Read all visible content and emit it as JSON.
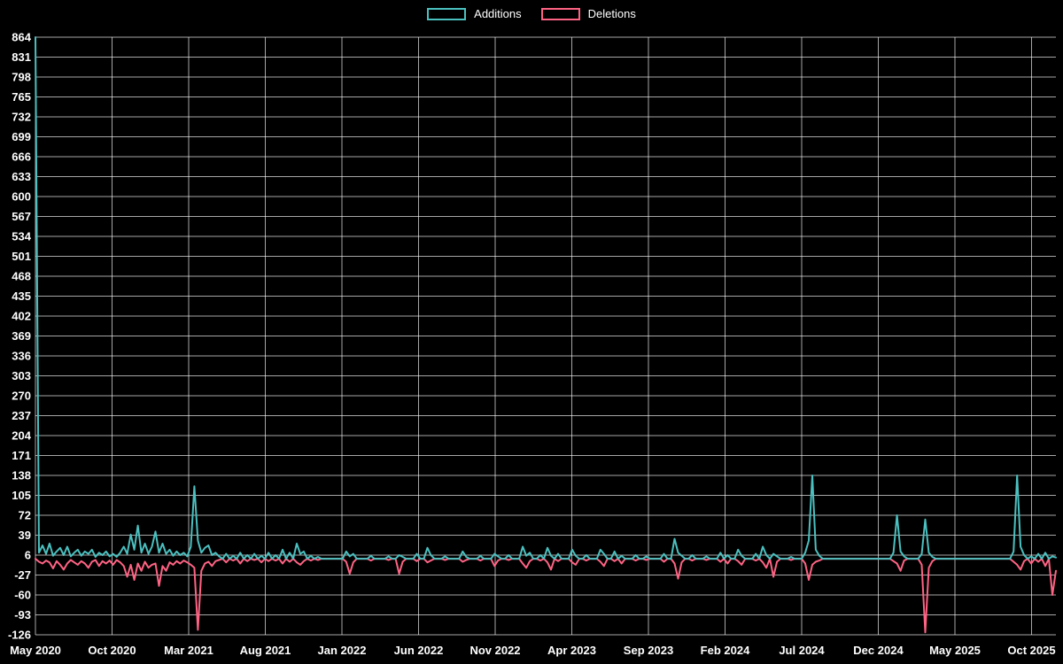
{
  "chart_data": {
    "type": "line",
    "title": "",
    "background": "#000000",
    "grid": true,
    "legend_position": "top",
    "x_axis": {
      "unit": "week",
      "weeks_total": 290,
      "weeks_per_tick": 21.7,
      "tick_labels": [
        "May 2020",
        "Oct 2020",
        "Mar 2021",
        "Aug 2021",
        "Jan 2022",
        "Jun 2022",
        "Nov 2022",
        "Apr 2023",
        "Sep 2023",
        "Feb 2024",
        "Jul 2024",
        "Dec 2024",
        "May 2025",
        "Oct 2025"
      ]
    },
    "y_axis": {
      "min": -126,
      "max": 864,
      "tick_step": 33,
      "tick_labels": [
        864,
        831,
        798,
        765,
        732,
        699,
        666,
        633,
        600,
        567,
        534,
        501,
        468,
        435,
        402,
        369,
        336,
        303,
        270,
        237,
        204,
        171,
        138,
        105,
        72,
        39,
        6,
        -27,
        -60,
        -93,
        -126
      ]
    },
    "series": [
      {
        "name": "Additions",
        "color": "#4bc0c0",
        "default": 0
      },
      {
        "name": "Deletions",
        "color": "#ff6384",
        "default": 0
      }
    ],
    "points_format": "[week_index, additions, deletions]; weeks not listed are [0, 0]",
    "points": [
      [
        0,
        864,
        0
      ],
      [
        1,
        10,
        -5
      ],
      [
        2,
        22,
        -8
      ],
      [
        3,
        8,
        -3
      ],
      [
        4,
        25,
        -6
      ],
      [
        5,
        5,
        -16
      ],
      [
        6,
        12,
        -4
      ],
      [
        7,
        18,
        -10
      ],
      [
        8,
        6,
        -18
      ],
      [
        9,
        20,
        -8
      ],
      [
        10,
        4,
        -2
      ],
      [
        11,
        10,
        -6
      ],
      [
        12,
        15,
        -10
      ],
      [
        13,
        5,
        -4
      ],
      [
        14,
        12,
        -8
      ],
      [
        15,
        8,
        -15
      ],
      [
        16,
        15,
        -5
      ],
      [
        17,
        3,
        -2
      ],
      [
        18,
        10,
        -12
      ],
      [
        19,
        6,
        -4
      ],
      [
        20,
        12,
        -8
      ],
      [
        21,
        4,
        -3
      ],
      [
        22,
        8,
        -10
      ],
      [
        23,
        3,
        -2
      ],
      [
        24,
        10,
        -6
      ],
      [
        25,
        20,
        -12
      ],
      [
        26,
        8,
        -30
      ],
      [
        27,
        40,
        -10
      ],
      [
        28,
        15,
        -35
      ],
      [
        29,
        55,
        -8
      ],
      [
        30,
        10,
        -20
      ],
      [
        31,
        25,
        -5
      ],
      [
        32,
        8,
        -15
      ],
      [
        33,
        20,
        -10
      ],
      [
        34,
        45,
        -8
      ],
      [
        35,
        10,
        -45
      ],
      [
        36,
        25,
        -12
      ],
      [
        37,
        8,
        -20
      ],
      [
        38,
        15,
        -6
      ],
      [
        39,
        5,
        -10
      ],
      [
        40,
        12,
        -4
      ],
      [
        41,
        6,
        -8
      ],
      [
        42,
        10,
        -3
      ],
      [
        43,
        4,
        -6
      ],
      [
        44,
        20,
        -10
      ],
      [
        45,
        120,
        -15
      ],
      [
        46,
        30,
        -118
      ],
      [
        47,
        10,
        -20
      ],
      [
        48,
        18,
        -8
      ],
      [
        49,
        22,
        -5
      ],
      [
        50,
        6,
        -12
      ],
      [
        51,
        10,
        -4
      ],
      [
        52,
        4,
        -2
      ],
      [
        54,
        8,
        -6
      ],
      [
        56,
        5,
        -3
      ],
      [
        58,
        10,
        -8
      ],
      [
        60,
        6,
        -4
      ],
      [
        62,
        8,
        -2
      ],
      [
        64,
        5,
        -6
      ],
      [
        66,
        10,
        -4
      ],
      [
        68,
        6,
        -3
      ],
      [
        70,
        15,
        -8
      ],
      [
        72,
        10,
        -5
      ],
      [
        74,
        25,
        -6
      ],
      [
        75,
        8,
        -10
      ],
      [
        76,
        12,
        -4
      ],
      [
        78,
        5,
        -3
      ],
      [
        80,
        3,
        -2
      ],
      [
        88,
        12,
        -5
      ],
      [
        89,
        4,
        -25
      ],
      [
        90,
        8,
        -6
      ],
      [
        95,
        5,
        -3
      ],
      [
        100,
        4,
        -2
      ],
      [
        103,
        6,
        -25
      ],
      [
        104,
        3,
        -5
      ],
      [
        108,
        8,
        -4
      ],
      [
        111,
        18,
        -6
      ],
      [
        112,
        6,
        -3
      ],
      [
        116,
        4,
        -2
      ],
      [
        121,
        12,
        -5
      ],
      [
        122,
        3,
        -2
      ],
      [
        126,
        5,
        -3
      ],
      [
        130,
        8,
        -12
      ],
      [
        131,
        4,
        -3
      ],
      [
        134,
        6,
        -2
      ],
      [
        138,
        20,
        -8
      ],
      [
        139,
        5,
        -15
      ],
      [
        140,
        10,
        -4
      ],
      [
        143,
        6,
        -3
      ],
      [
        145,
        18,
        -6
      ],
      [
        146,
        5,
        -18
      ],
      [
        148,
        8,
        -4
      ],
      [
        152,
        15,
        -6
      ],
      [
        153,
        5,
        -10
      ],
      [
        156,
        6,
        -3
      ],
      [
        160,
        15,
        -5
      ],
      [
        161,
        8,
        -12
      ],
      [
        164,
        12,
        -4
      ],
      [
        166,
        5,
        -8
      ],
      [
        170,
        6,
        -3
      ],
      [
        173,
        4,
        -2
      ],
      [
        178,
        8,
        -5
      ],
      [
        181,
        33,
        -8
      ],
      [
        182,
        10,
        -33
      ],
      [
        183,
        5,
        -6
      ],
      [
        186,
        6,
        -3
      ],
      [
        190,
        4,
        -2
      ],
      [
        194,
        10,
        -5
      ],
      [
        196,
        6,
        -8
      ],
      [
        199,
        15,
        -4
      ],
      [
        200,
        5,
        -10
      ],
      [
        204,
        8,
        -3
      ],
      [
        206,
        20,
        -6
      ],
      [
        207,
        6,
        -15
      ],
      [
        209,
        8,
        -30
      ],
      [
        210,
        4,
        -5
      ],
      [
        214,
        3,
        -2
      ],
      [
        218,
        10,
        -8
      ],
      [
        219,
        30,
        -35
      ],
      [
        220,
        138,
        -10
      ],
      [
        221,
        15,
        -5
      ],
      [
        222,
        5,
        -3
      ],
      [
        243,
        10,
        -4
      ],
      [
        244,
        72,
        -8
      ],
      [
        245,
        12,
        -20
      ],
      [
        246,
        4,
        -3
      ],
      [
        251,
        8,
        -10
      ],
      [
        252,
        65,
        -122
      ],
      [
        253,
        10,
        -15
      ],
      [
        254,
        3,
        -4
      ],
      [
        277,
        12,
        -5
      ],
      [
        278,
        138,
        -10
      ],
      [
        279,
        20,
        -18
      ],
      [
        280,
        6,
        -4
      ],
      [
        282,
        4,
        -8
      ],
      [
        284,
        8,
        -5
      ],
      [
        286,
        10,
        -12
      ],
      [
        288,
        4,
        -60
      ],
      [
        289,
        2,
        -20
      ]
    ]
  }
}
